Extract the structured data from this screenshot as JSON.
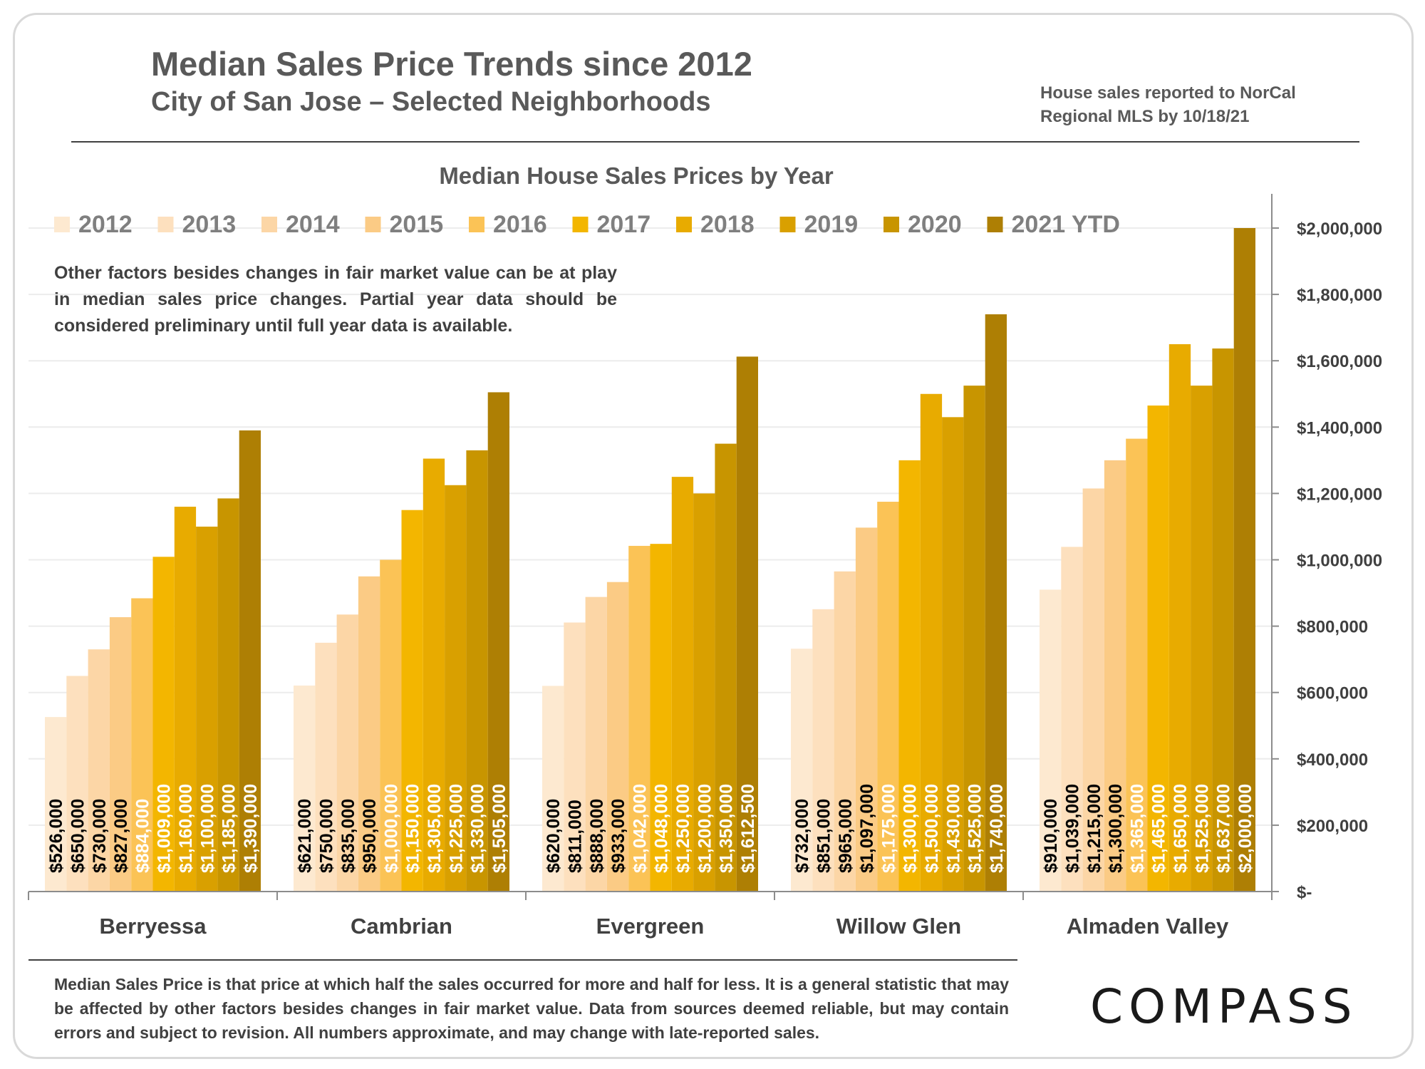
{
  "header": {
    "title": "Median Sales Price Trends since 2012",
    "subtitle": "City of San Jose – Selected Neighborhoods",
    "source_line1": "House sales reported to NorCal",
    "source_line2": "Regional MLS by 10/18/21"
  },
  "note": "Other factors besides changes in fair market value can be at play in median sales price changes. Partial year data should be considered preliminary until full year data is available.",
  "footer": "Median Sales Price is that price at which half the sales occurred for more and half for less. It is a general statistic that may be affected by other factors besides changes in fair market value. Data from sources deemed reliable, but may contain errors and subject to revision.  All numbers approximate, and may change with late-reported sales.",
  "logo": "COMPASS",
  "chart_data": {
    "type": "bar",
    "title": "Median House Sales Prices by Year",
    "categories": [
      "Berryessa",
      "Cambrian",
      "Evergreen",
      "Willow Glen",
      "Almaden Valley"
    ],
    "ylim": [
      0,
      2000000
    ],
    "yticks": [
      0,
      200000,
      400000,
      600000,
      800000,
      1000000,
      1200000,
      1400000,
      1600000,
      1800000,
      2000000
    ],
    "ytick_labels": [
      "$-",
      "$200,000",
      "$400,000",
      "$600,000",
      "$800,000",
      "$1,000,000",
      "$1,200,000",
      "$1,400,000",
      "$1,600,000",
      "$1,800,000",
      "$2,000,000"
    ],
    "grid": true,
    "legend_position": "top-left",
    "series": [
      {
        "name": "2012",
        "color": "#fde9d0",
        "values": [
          526000,
          621000,
          620000,
          732000,
          910000
        ],
        "labels": [
          "$526,000",
          "$621,000",
          "$620,000",
          "$732,000",
          "$910,000"
        ]
      },
      {
        "name": "2013",
        "color": "#fde0be",
        "values": [
          650000,
          750000,
          811000,
          851000,
          1039000
        ],
        "labels": [
          "$650,000",
          "$750,000",
          "$811,000",
          "$851,000",
          "$1,039,000"
        ]
      },
      {
        "name": "2014",
        "color": "#fcd6a6",
        "values": [
          730000,
          835000,
          888000,
          965000,
          1215000
        ],
        "labels": [
          "$730,000",
          "$835,000",
          "$888,000",
          "$965,000",
          "$1,215,000"
        ]
      },
      {
        "name": "2015",
        "color": "#fbcb85",
        "values": [
          827000,
          950000,
          933000,
          1097000,
          1300000
        ],
        "labels": [
          "$827,000",
          "$950,000",
          "$933,000",
          "$1,097,000",
          "$1,300,000"
        ]
      },
      {
        "name": "2016",
        "color": "#fbc356",
        "values": [
          884000,
          1000000,
          1042000,
          1175000,
          1365000
        ],
        "labels": [
          "$884,000",
          "$1,000,000",
          "$1,042,000",
          "$1,175,000",
          "$1,365,000"
        ]
      },
      {
        "name": "2017",
        "color": "#f3b600",
        "values": [
          1009000,
          1150000,
          1048000,
          1300000,
          1465000
        ],
        "labels": [
          "$1,009,000",
          "$1,150,000",
          "$1,048,000",
          "$1,300,000",
          "$1,465,000"
        ]
      },
      {
        "name": "2018",
        "color": "#e8ab00",
        "values": [
          1160000,
          1305000,
          1250000,
          1500000,
          1650000
        ],
        "labels": [
          "$1,160,000",
          "$1,305,000",
          "$1,250,000",
          "$1,500,000",
          "$1,650,000"
        ]
      },
      {
        "name": "2019",
        "color": "#d9a000",
        "values": [
          1100000,
          1225000,
          1200000,
          1430000,
          1525000
        ],
        "labels": [
          "$1,100,000",
          "$1,225,000",
          "$1,200,000",
          "$1,430,000",
          "$1,525,000"
        ]
      },
      {
        "name": "2020",
        "color": "#c89500",
        "values": [
          1185000,
          1330000,
          1350000,
          1525000,
          1637000
        ],
        "labels": [
          "$1,185,000",
          "$1,330,000",
          "$1,350,000",
          "$1,525,000",
          "$1,637,000"
        ]
      },
      {
        "name": "2021 YTD",
        "color": "#ae7f04",
        "values": [
          1390000,
          1505000,
          1612500,
          1740000,
          2000000
        ],
        "labels": [
          "$1,390,000",
          "$1,505,000",
          "$1,612,500",
          "$1,740,000",
          "$2,000,000"
        ]
      }
    ],
    "label_colors": [
      "#000000",
      "#000000",
      "#000000",
      "#000000",
      "#ffffff",
      "#ffffff",
      "#ffffff",
      "#ffffff",
      "#ffffff",
      "#ffffff"
    ]
  }
}
